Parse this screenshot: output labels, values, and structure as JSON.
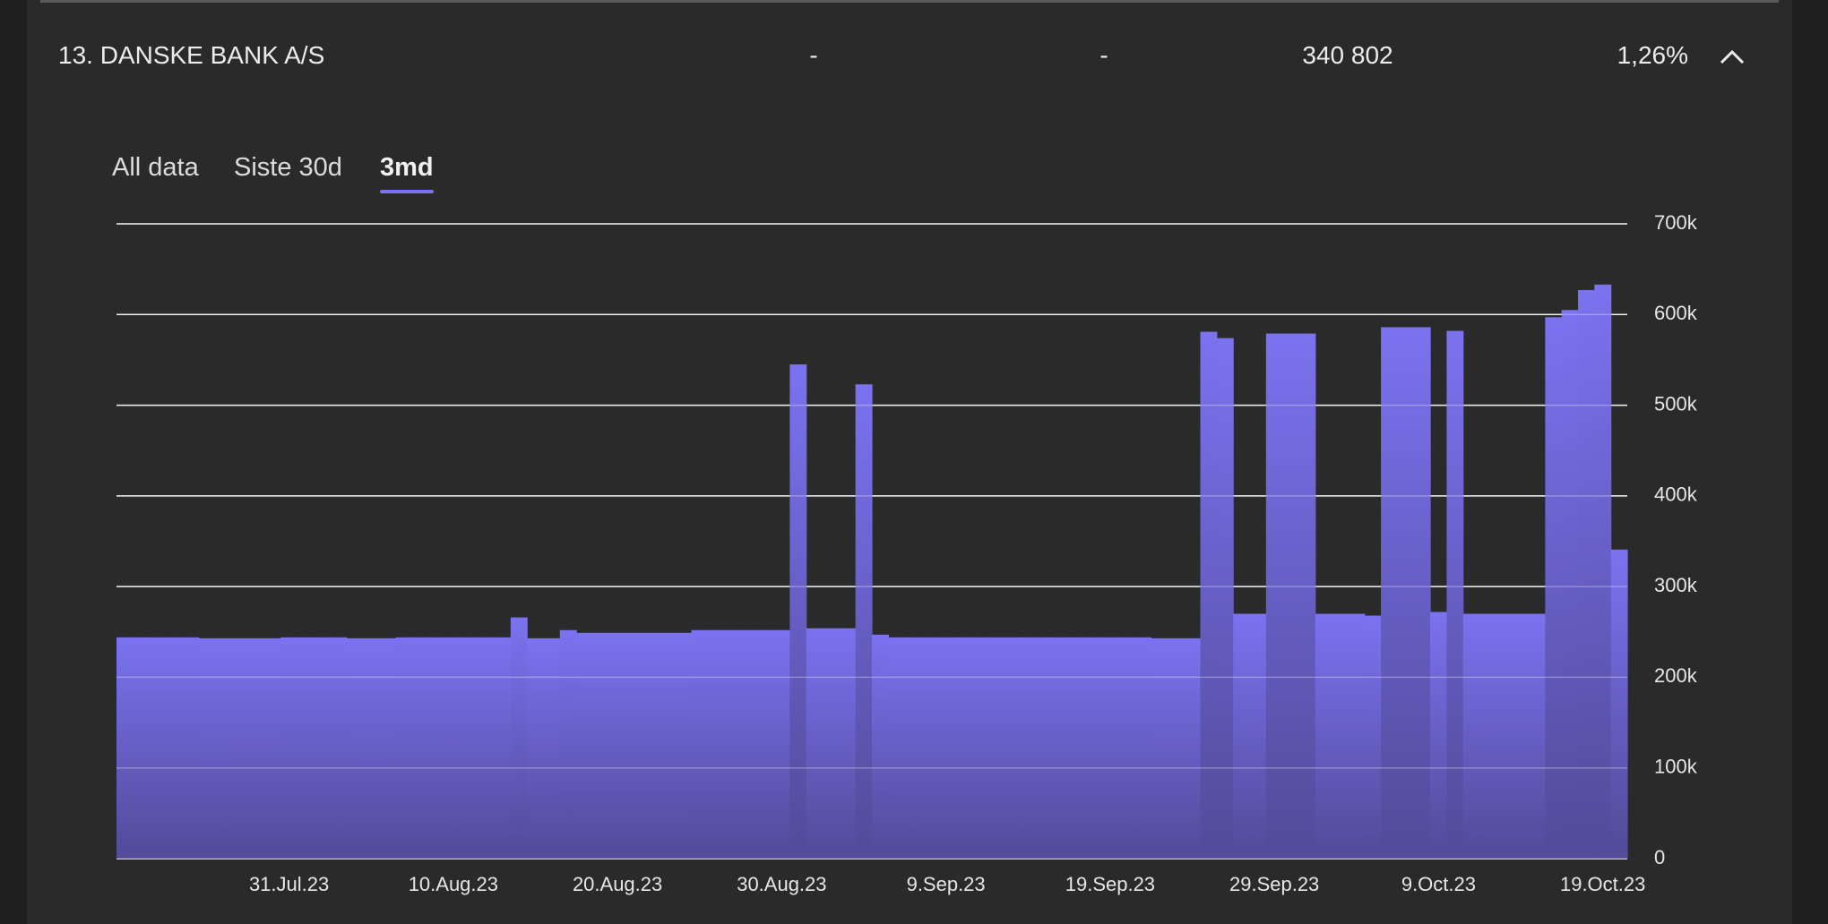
{
  "header": {
    "title": "13. DANSKE BANK A/S",
    "columns": [
      "-",
      "-",
      "340 802",
      "1,26%"
    ]
  },
  "tabs": {
    "items": [
      "All data",
      "Siste 30d",
      "3md"
    ],
    "active": 2
  },
  "chart_data": {
    "type": "step-area",
    "color_top": "#7b72f0",
    "color_bottom": "#514b98",
    "grid": true,
    "x": [
      "2023-07-20",
      "2023-07-21",
      "2023-07-22",
      "2023-07-23",
      "2023-07-24",
      "2023-07-25",
      "2023-07-26",
      "2023-07-27",
      "2023-07-28",
      "2023-07-29",
      "2023-07-30",
      "2023-07-31",
      "2023-08-01",
      "2023-08-02",
      "2023-08-03",
      "2023-08-04",
      "2023-08-05",
      "2023-08-06",
      "2023-08-07",
      "2023-08-08",
      "2023-08-09",
      "2023-08-10",
      "2023-08-11",
      "2023-08-12",
      "2023-08-13",
      "2023-08-14",
      "2023-08-15",
      "2023-08-16",
      "2023-08-17",
      "2023-08-18",
      "2023-08-19",
      "2023-08-20",
      "2023-08-21",
      "2023-08-22",
      "2023-08-23",
      "2023-08-24",
      "2023-08-25",
      "2023-08-26",
      "2023-08-27",
      "2023-08-28",
      "2023-08-29",
      "2023-08-30",
      "2023-08-31",
      "2023-09-01",
      "2023-09-02",
      "2023-09-03",
      "2023-09-04",
      "2023-09-05",
      "2023-09-06",
      "2023-09-07",
      "2023-09-08",
      "2023-09-09",
      "2023-09-10",
      "2023-09-11",
      "2023-09-12",
      "2023-09-13",
      "2023-09-14",
      "2023-09-15",
      "2023-09-16",
      "2023-09-17",
      "2023-09-18",
      "2023-09-19",
      "2023-09-20",
      "2023-09-21",
      "2023-09-22",
      "2023-09-23",
      "2023-09-24",
      "2023-09-25",
      "2023-09-26",
      "2023-09-27",
      "2023-09-28",
      "2023-09-29",
      "2023-09-30",
      "2023-10-01",
      "2023-10-02",
      "2023-10-03",
      "2023-10-04",
      "2023-10-05",
      "2023-10-06",
      "2023-10-07",
      "2023-10-08",
      "2023-10-09",
      "2023-10-10",
      "2023-10-11",
      "2023-10-12",
      "2023-10-13",
      "2023-10-14",
      "2023-10-15",
      "2023-10-16",
      "2023-10-17",
      "2023-10-18",
      "2023-10-19"
    ],
    "values": [
      244000,
      244000,
      244000,
      244000,
      244000,
      243000,
      243000,
      243000,
      243000,
      243000,
      244000,
      244000,
      244000,
      244000,
      243000,
      243000,
      243000,
      244000,
      244000,
      244000,
      244000,
      244000,
      244000,
      244000,
      266000,
      243000,
      243000,
      252000,
      249000,
      249000,
      249000,
      249000,
      249000,
      249000,
      249000,
      252000,
      252000,
      252000,
      252000,
      252000,
      252000,
      545000,
      254000,
      254000,
      254000,
      523000,
      247000,
      244000,
      244000,
      244000,
      244000,
      244000,
      244000,
      244000,
      244000,
      244000,
      244000,
      244000,
      244000,
      244000,
      244000,
      244000,
      244000,
      243000,
      243000,
      243000,
      581000,
      574000,
      270000,
      270000,
      579000,
      579000,
      579000,
      270000,
      270000,
      270000,
      268000,
      586000,
      586000,
      586000,
      272000,
      582000,
      270000,
      270000,
      270000,
      270000,
      270000,
      597000,
      605000,
      627000,
      633000,
      340802
    ],
    "xlim": [
      "2023-07-20",
      "2023-10-20"
    ],
    "xticks": [
      {
        "value": "2023-07-31",
        "label": "31.Jul.23"
      },
      {
        "value": "2023-08-10",
        "label": "10.Aug.23"
      },
      {
        "value": "2023-08-20",
        "label": "20.Aug.23"
      },
      {
        "value": "2023-08-30",
        "label": "30.Aug.23"
      },
      {
        "value": "2023-09-09",
        "label": "9.Sep.23"
      },
      {
        "value": "2023-09-19",
        "label": "19.Sep.23"
      },
      {
        "value": "2023-09-29",
        "label": "29.Sep.23"
      },
      {
        "value": "2023-10-09",
        "label": "9.Oct.23"
      },
      {
        "value": "2023-10-19",
        "label": "19.Oct.23"
      }
    ],
    "ylim": [
      0,
      700000
    ],
    "yticks": [
      0,
      {
        "value": 100000,
        "label": "100k"
      },
      {
        "value": 200000,
        "label": "200k"
      },
      {
        "value": 300000,
        "label": "300k"
      },
      {
        "value": 400000,
        "label": "400k"
      },
      {
        "value": 500000,
        "label": "500k"
      },
      {
        "value": 600000,
        "label": "600k"
      },
      {
        "value": 700000,
        "label": "700k"
      }
    ]
  }
}
